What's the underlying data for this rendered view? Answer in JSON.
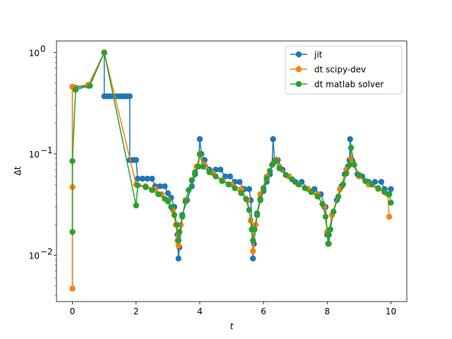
{
  "chart_data": {
    "type": "line",
    "xlabel": "t",
    "ylabel": "Δt",
    "yscale": "log",
    "xlim": [
      -0.5,
      10.5
    ],
    "ylim": [
      0.0035,
      1.3
    ],
    "xticks": [
      0,
      2,
      4,
      6,
      8,
      10
    ],
    "xtick_labels": [
      "0",
      "2",
      "4",
      "6",
      "8",
      "10"
    ],
    "yticks": [
      0.01,
      0.1,
      1
    ],
    "ytick_labels": [
      "10",
      "10",
      "10"
    ],
    "ytick_exponents": [
      "−2",
      "−1",
      "0"
    ],
    "grid": false,
    "legend_position": "upper right",
    "series": [
      {
        "name": "jit",
        "color": "#1f77b4",
        "marker": "circle",
        "points": [
          [
            0.0,
            0.0047
          ],
          [
            0.0,
            0.46
          ],
          [
            0.1,
            0.45
          ],
          [
            0.5,
            0.47
          ],
          [
            1.0,
            1.0
          ],
          [
            1.0,
            0.37
          ],
          [
            1.1,
            0.37
          ],
          [
            1.2,
            0.37
          ],
          [
            1.3,
            0.37
          ],
          [
            1.4,
            0.37
          ],
          [
            1.5,
            0.37
          ],
          [
            1.6,
            0.37
          ],
          [
            1.7,
            0.37
          ],
          [
            1.8,
            0.37
          ],
          [
            1.8,
            0.087
          ],
          [
            1.9,
            0.087
          ],
          [
            2.0,
            0.087
          ],
          [
            2.05,
            0.057
          ],
          [
            2.2,
            0.057
          ],
          [
            2.35,
            0.057
          ],
          [
            2.5,
            0.057
          ],
          [
            2.6,
            0.048
          ],
          [
            2.75,
            0.048
          ],
          [
            2.9,
            0.048
          ],
          [
            3.0,
            0.041
          ],
          [
            3.1,
            0.037
          ],
          [
            3.2,
            0.03
          ],
          [
            3.3,
            0.016
          ],
          [
            3.33,
            0.0093
          ],
          [
            3.36,
            0.012
          ],
          [
            3.45,
            0.025
          ],
          [
            3.6,
            0.035
          ],
          [
            3.75,
            0.048
          ],
          [
            3.85,
            0.063
          ],
          [
            3.95,
            0.075
          ],
          [
            4.0,
            0.14
          ],
          [
            4.05,
            0.1
          ],
          [
            4.15,
            0.087
          ],
          [
            4.3,
            0.07
          ],
          [
            4.5,
            0.07
          ],
          [
            4.65,
            0.07
          ],
          [
            4.8,
            0.06
          ],
          [
            4.95,
            0.06
          ],
          [
            5.1,
            0.053
          ],
          [
            5.25,
            0.053
          ],
          [
            5.4,
            0.045
          ],
          [
            5.55,
            0.045
          ],
          [
            5.6,
            0.035
          ],
          [
            5.65,
            0.018
          ],
          [
            5.67,
            0.0093
          ],
          [
            5.7,
            0.013
          ],
          [
            5.8,
            0.025
          ],
          [
            5.9,
            0.035
          ],
          [
            6.0,
            0.043
          ],
          [
            6.1,
            0.053
          ],
          [
            6.2,
            0.063
          ],
          [
            6.27,
            0.078
          ],
          [
            6.3,
            0.14
          ],
          [
            6.35,
            0.087
          ],
          [
            6.45,
            0.087
          ],
          [
            6.6,
            0.07
          ],
          [
            6.8,
            0.06
          ],
          [
            7.0,
            0.053
          ],
          [
            7.2,
            0.053
          ],
          [
            7.4,
            0.045
          ],
          [
            7.6,
            0.045
          ],
          [
            7.8,
            0.04
          ],
          [
            7.95,
            0.03
          ],
          [
            8.0,
            0.016
          ],
          [
            8.03,
            0.013
          ],
          [
            8.05,
            0.016
          ],
          [
            8.15,
            0.025
          ],
          [
            8.3,
            0.035
          ],
          [
            8.45,
            0.048
          ],
          [
            8.55,
            0.063
          ],
          [
            8.65,
            0.075
          ],
          [
            8.7,
            0.087
          ],
          [
            8.72,
            0.14
          ],
          [
            8.8,
            0.085
          ],
          [
            8.95,
            0.063
          ],
          [
            9.1,
            0.06
          ],
          [
            9.3,
            0.053
          ],
          [
            9.5,
            0.053
          ],
          [
            9.7,
            0.053
          ],
          [
            9.8,
            0.045
          ],
          [
            10.0,
            0.045
          ]
        ]
      },
      {
        "name": "dt scipy-dev",
        "color": "#ff7f0e",
        "marker": "circle",
        "points": [
          [
            0.0,
            0.0047
          ],
          [
            0.0,
            0.047
          ],
          [
            0.0,
            0.46
          ],
          [
            0.5,
            0.48
          ],
          [
            1.0,
            1.0
          ],
          [
            2.0,
            0.05
          ],
          [
            2.3,
            0.048
          ],
          [
            2.6,
            0.045
          ],
          [
            2.8,
            0.04
          ],
          [
            3.0,
            0.035
          ],
          [
            3.15,
            0.028
          ],
          [
            3.25,
            0.02
          ],
          [
            3.3,
            0.014
          ],
          [
            3.33,
            0.0125
          ],
          [
            3.4,
            0.02
          ],
          [
            3.55,
            0.035
          ],
          [
            3.75,
            0.055
          ],
          [
            3.9,
            0.075
          ],
          [
            4.0,
            0.098
          ],
          [
            4.15,
            0.078
          ],
          [
            4.4,
            0.065
          ],
          [
            4.7,
            0.055
          ],
          [
            5.0,
            0.05
          ],
          [
            5.3,
            0.045
          ],
          [
            5.5,
            0.035
          ],
          [
            5.6,
            0.022
          ],
          [
            5.67,
            0.011
          ],
          [
            5.75,
            0.02
          ],
          [
            5.9,
            0.04
          ],
          [
            6.1,
            0.06
          ],
          [
            6.3,
            0.08
          ],
          [
            6.4,
            0.088
          ],
          [
            6.5,
            0.075
          ],
          [
            6.8,
            0.06
          ],
          [
            7.1,
            0.05
          ],
          [
            7.4,
            0.045
          ],
          [
            7.7,
            0.04
          ],
          [
            7.9,
            0.03
          ],
          [
            8.0,
            0.017
          ],
          [
            8.05,
            0.013
          ],
          [
            8.15,
            0.025
          ],
          [
            8.4,
            0.045
          ],
          [
            8.6,
            0.07
          ],
          [
            8.75,
            0.09
          ],
          [
            8.8,
            0.08
          ],
          [
            9.0,
            0.06
          ],
          [
            9.3,
            0.05
          ],
          [
            9.6,
            0.045
          ],
          [
            9.9,
            0.04
          ],
          [
            9.95,
            0.024
          ]
        ]
      },
      {
        "name": "dt matlab solver",
        "color": "#2ca02c",
        "marker": "circle",
        "points": [
          [
            0.0,
            0.017
          ],
          [
            0.0,
            0.085
          ],
          [
            0.1,
            0.43
          ],
          [
            0.55,
            0.47
          ],
          [
            1.0,
            1.0
          ],
          [
            2.0,
            0.031
          ],
          [
            2.05,
            0.049
          ],
          [
            2.3,
            0.047
          ],
          [
            2.5,
            0.044
          ],
          [
            2.7,
            0.04
          ],
          [
            2.9,
            0.036
          ],
          [
            3.0,
            0.034
          ],
          [
            3.1,
            0.03
          ],
          [
            3.2,
            0.025
          ],
          [
            3.28,
            0.02
          ],
          [
            3.33,
            0.014
          ],
          [
            3.36,
            0.017
          ],
          [
            3.45,
            0.024
          ],
          [
            3.55,
            0.034
          ],
          [
            3.65,
            0.044
          ],
          [
            3.75,
            0.055
          ],
          [
            3.85,
            0.066
          ],
          [
            3.95,
            0.075
          ],
          [
            4.0,
            0.1
          ],
          [
            4.1,
            0.075
          ],
          [
            4.3,
            0.066
          ],
          [
            4.5,
            0.06
          ],
          [
            4.7,
            0.054
          ],
          [
            4.9,
            0.05
          ],
          [
            5.1,
            0.046
          ],
          [
            5.3,
            0.041
          ],
          [
            5.45,
            0.036
          ],
          [
            5.55,
            0.028
          ],
          [
            5.63,
            0.018
          ],
          [
            5.67,
            0.014
          ],
          [
            5.72,
            0.018
          ],
          [
            5.8,
            0.026
          ],
          [
            5.9,
            0.036
          ],
          [
            6.0,
            0.046
          ],
          [
            6.1,
            0.057
          ],
          [
            6.2,
            0.068
          ],
          [
            6.3,
            0.08
          ],
          [
            6.4,
            0.085
          ],
          [
            6.5,
            0.072
          ],
          [
            6.7,
            0.062
          ],
          [
            6.9,
            0.056
          ],
          [
            7.1,
            0.05
          ],
          [
            7.3,
            0.046
          ],
          [
            7.5,
            0.042
          ],
          [
            7.7,
            0.038
          ],
          [
            7.85,
            0.032
          ],
          [
            7.95,
            0.024
          ],
          [
            8.02,
            0.016
          ],
          [
            8.05,
            0.013
          ],
          [
            8.1,
            0.018
          ],
          [
            8.2,
            0.027
          ],
          [
            8.35,
            0.038
          ],
          [
            8.5,
            0.05
          ],
          [
            8.6,
            0.064
          ],
          [
            8.7,
            0.078
          ],
          [
            8.75,
            0.115
          ],
          [
            8.85,
            0.078
          ],
          [
            9.0,
            0.062
          ],
          [
            9.2,
            0.054
          ],
          [
            9.4,
            0.05
          ],
          [
            9.6,
            0.046
          ],
          [
            9.8,
            0.042
          ],
          [
            9.95,
            0.04
          ],
          [
            10.0,
            0.033
          ]
        ]
      }
    ]
  }
}
